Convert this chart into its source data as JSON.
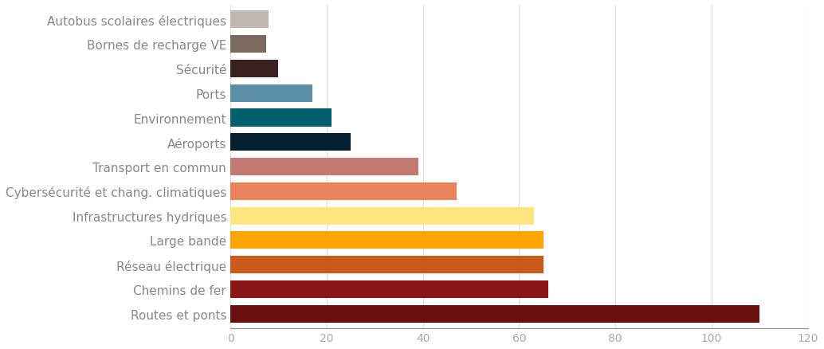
{
  "categories": [
    "Routes et ponts",
    "Chemins de fer",
    "Réseau électrique",
    "Large bande",
    "Infrastructures hydriques",
    "Cybersécurité et chang. climatiques",
    "Transport en commun",
    "Aéroports",
    "Environnement",
    "Ports",
    "Sécurité",
    "Bornes de recharge VE",
    "Autobus scolaires électriques"
  ],
  "values": [
    110,
    66,
    65,
    65,
    63,
    47,
    39,
    25,
    21,
    17,
    10,
    7.5,
    8
  ],
  "colors": [
    "#6B0E0E",
    "#8B1515",
    "#C95A1A",
    "#FFA500",
    "#FFE680",
    "#E8845A",
    "#C47A72",
    "#002030",
    "#005F6B",
    "#5B8FA8",
    "#3B2020",
    "#7A6A60",
    "#C0B8B0"
  ],
  "xlim": [
    0,
    120
  ],
  "xticks": [
    0,
    20,
    40,
    60,
    80,
    100,
    120
  ],
  "background_color": "#FFFFFF",
  "grid_color": "#E0E0E0",
  "bar_height": 0.72,
  "tick_fontsize": 10,
  "label_fontsize": 11,
  "bottom_spine_color": "#888888",
  "label_color": "#888888",
  "tick_color": "#AAAAAA"
}
